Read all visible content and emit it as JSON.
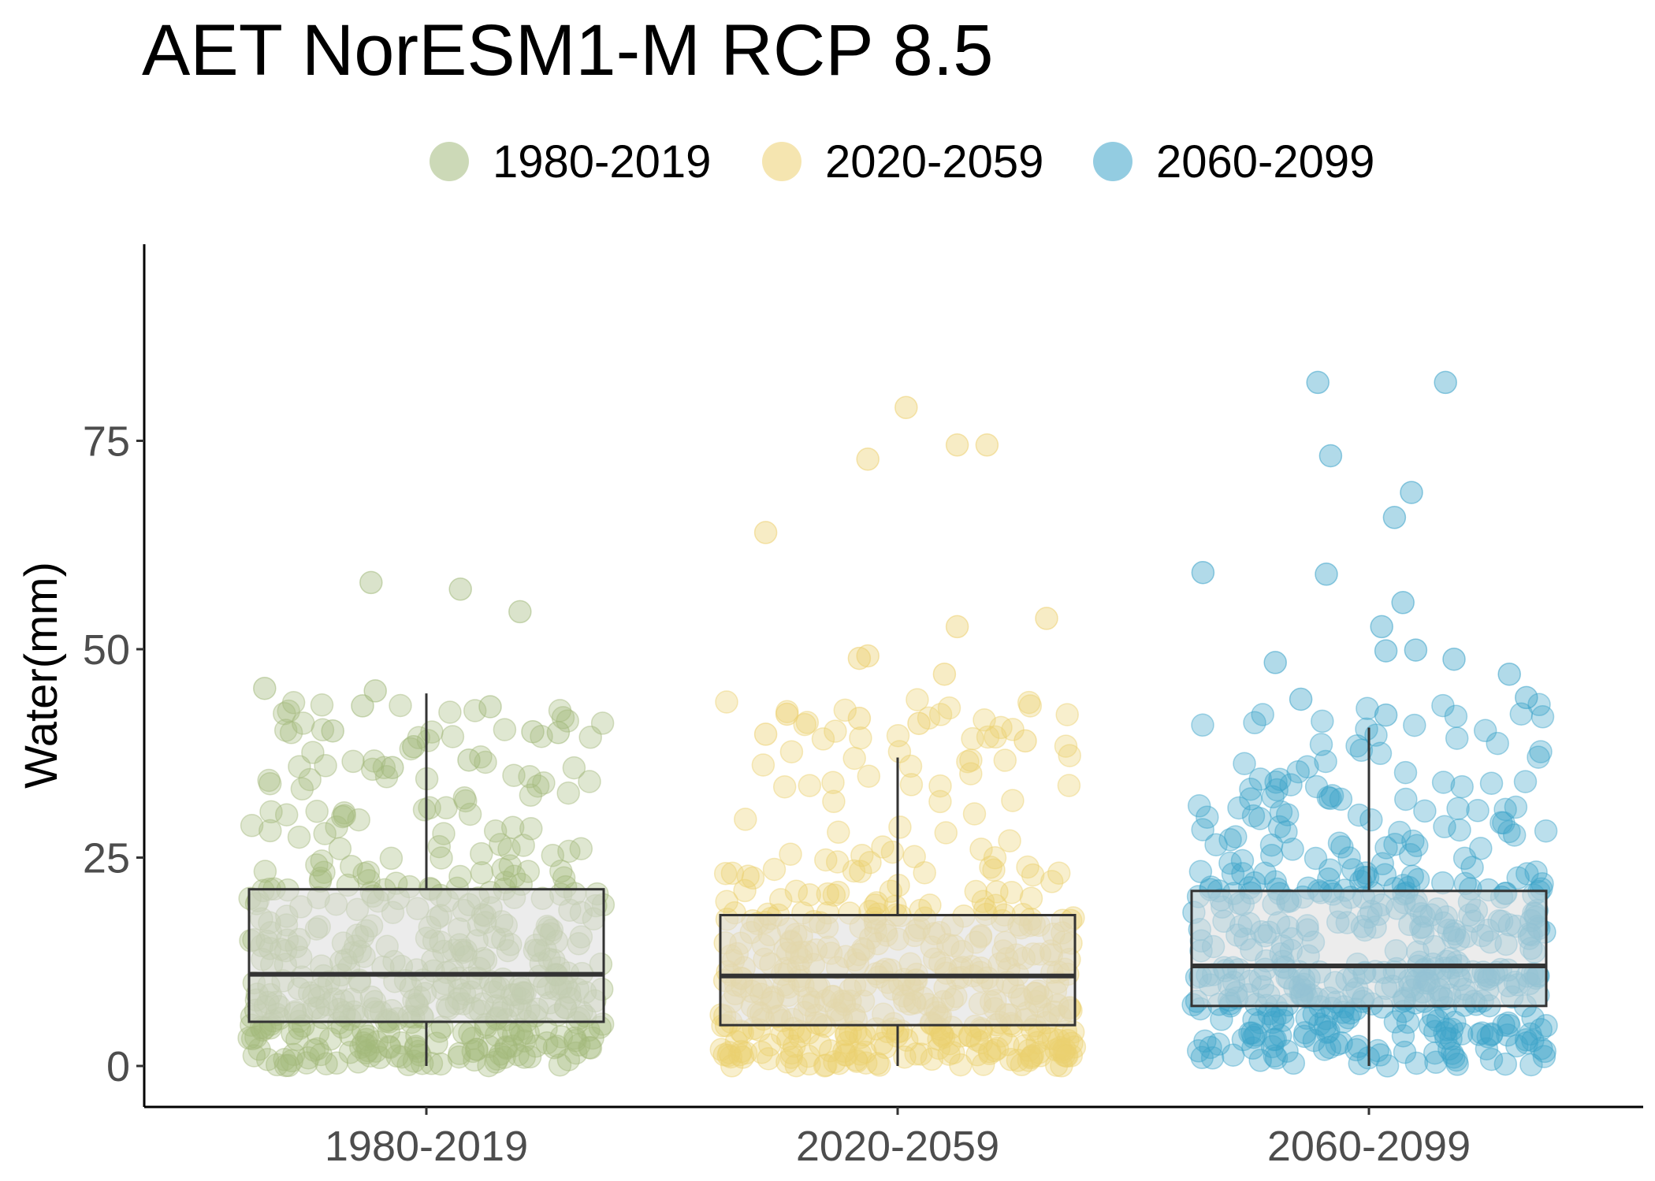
{
  "chart_data": {
    "type": "box",
    "title": "AET NorESM1-M RCP 8.5",
    "xlabel": "",
    "ylabel": "Water(mm)",
    "ylim": [
      -5,
      98
    ],
    "yticks": [
      0,
      25,
      50,
      75
    ],
    "ytick_labels": [
      "0",
      "25",
      "50",
      "75"
    ],
    "categories": [
      "1980-2019",
      "2020-2059",
      "2060-2099"
    ],
    "legend": {
      "position": "top",
      "entries": [
        {
          "label": "1980-2019",
          "color": "#a3b97c"
        },
        {
          "label": "2020-2059",
          "color": "#ecd06f"
        },
        {
          "label": "2060-2099",
          "color": "#3ba3c9"
        }
      ]
    },
    "grid": false,
    "box_fill": "#dcdcdc",
    "boxes": [
      {
        "category": "1980-2019",
        "q1": 5.3,
        "median": 11.0,
        "q3": 21.2,
        "whisker_low": 0,
        "whisker_high": 44.7,
        "color": "#a3b97c"
      },
      {
        "category": "2020-2059",
        "q1": 4.9,
        "median": 10.8,
        "q3": 18.1,
        "whisker_low": 0,
        "whisker_high": 37.0,
        "color": "#ecd06f"
      },
      {
        "category": "2060-2099",
        "q1": 7.2,
        "median": 12.0,
        "q3": 21.0,
        "whisker_low": 0,
        "whisker_high": 40.6,
        "color": "#3ba3c9"
      }
    ],
    "highlighted_points": [
      {
        "category": "1980-2019",
        "points": [
          [
            -0.38,
            45.3
          ],
          [
            -0.13,
            58.0
          ],
          [
            -0.12,
            45.0
          ],
          [
            0.08,
            57.2
          ],
          [
            0.22,
            54.5
          ],
          [
            -0.22,
            40.2
          ],
          [
            -0.15,
            43.2
          ],
          [
            0.15,
            43.1
          ],
          [
            0.25,
            40.1
          ],
          [
            0.31,
            40.0
          ],
          [
            -0.03,
            38.3
          ],
          [
            -0.08,
            35.8
          ],
          [
            0.1,
            36.7
          ]
        ]
      },
      {
        "category": "2020-2059",
        "points": [
          [
            -0.31,
            64.0
          ],
          [
            -0.07,
            72.8
          ],
          [
            0.02,
            79.0
          ],
          [
            0.14,
            74.5
          ],
          [
            0.21,
            74.5
          ],
          [
            0.14,
            52.7
          ],
          [
            0.11,
            47.0
          ],
          [
            -0.09,
            48.9
          ],
          [
            -0.07,
            49.2
          ],
          [
            0.35,
            53.7
          ],
          [
            0.3,
            39.0
          ],
          [
            -0.31,
            39.8
          ],
          [
            -0.26,
            42.2
          ],
          [
            -0.09,
            41.7
          ],
          [
            0.05,
            41.1
          ]
        ]
      },
      {
        "category": "2060-2099",
        "points": [
          [
            -0.39,
            59.2
          ],
          [
            -0.12,
            82.0
          ],
          [
            -0.1,
            59.0
          ],
          [
            -0.09,
            73.2
          ],
          [
            0.06,
            65.8
          ],
          [
            0.04,
            49.8
          ],
          [
            0.08,
            55.6
          ],
          [
            0.11,
            49.9
          ],
          [
            0.03,
            52.7
          ],
          [
            0.04,
            42.1
          ],
          [
            0.1,
            68.8
          ],
          [
            0.18,
            82.0
          ],
          [
            -0.22,
            48.4
          ],
          [
            -0.16,
            44.0
          ],
          [
            0.2,
            48.8
          ],
          [
            0.33,
            47.0
          ],
          [
            0.37,
            44.2
          ]
        ]
      }
    ],
    "point_cloud": {
      "points_per_group": 480,
      "min": 0,
      "max": 44,
      "opacity": 0.35
    }
  }
}
